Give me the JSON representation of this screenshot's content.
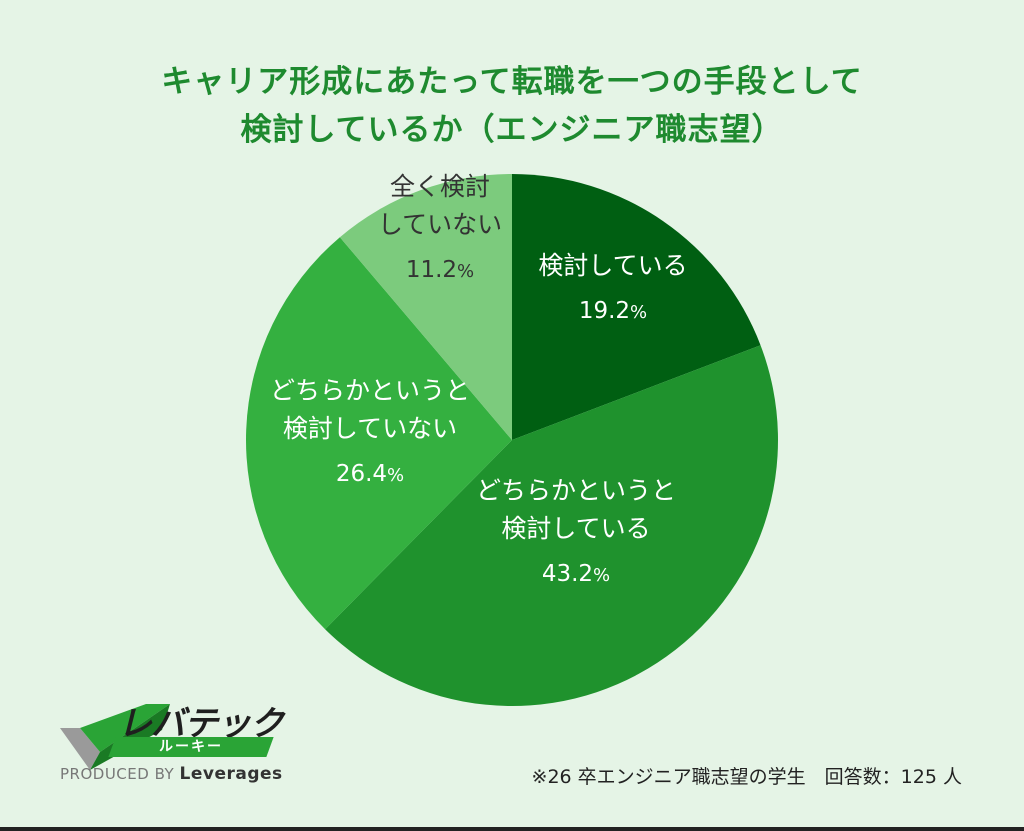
{
  "title": {
    "line1": "キャリア形成にあたって転職を一つの手段として",
    "line2": "検討しているか（エンジニア職志望）"
  },
  "chart_data": {
    "type": "pie",
    "start": "12 o'clock",
    "direction": "clockwise",
    "slices": [
      {
        "label_lines": [
          "検討している"
        ],
        "value": 19.2,
        "value_text": "19.2",
        "color": "#005f12",
        "text_color": "#ffffff"
      },
      {
        "label_lines": [
          "どちらかというと",
          "検討している"
        ],
        "value": 43.2,
        "value_text": "43.2",
        "color": "#1f922d",
        "text_color": "#ffffff"
      },
      {
        "label_lines": [
          "どちらかというと",
          "検討していない"
        ],
        "value": 26.4,
        "value_text": "26.4",
        "color": "#34b040",
        "text_color": "#ffffff"
      },
      {
        "label_lines": [
          "全く検討",
          "していない"
        ],
        "value": 11.2,
        "value_text": "11.2",
        "color": "#7ccb7d",
        "text_color": "#333333"
      }
    ],
    "unit": "%"
  },
  "logo": {
    "name": "レバテック",
    "sub": "ルーキー",
    "produced_prefix": "PRODUCED BY",
    "produced_brand": "Leverages"
  },
  "footnote": "※26 卒エンジニア職志望の学生　回答数：125 人"
}
